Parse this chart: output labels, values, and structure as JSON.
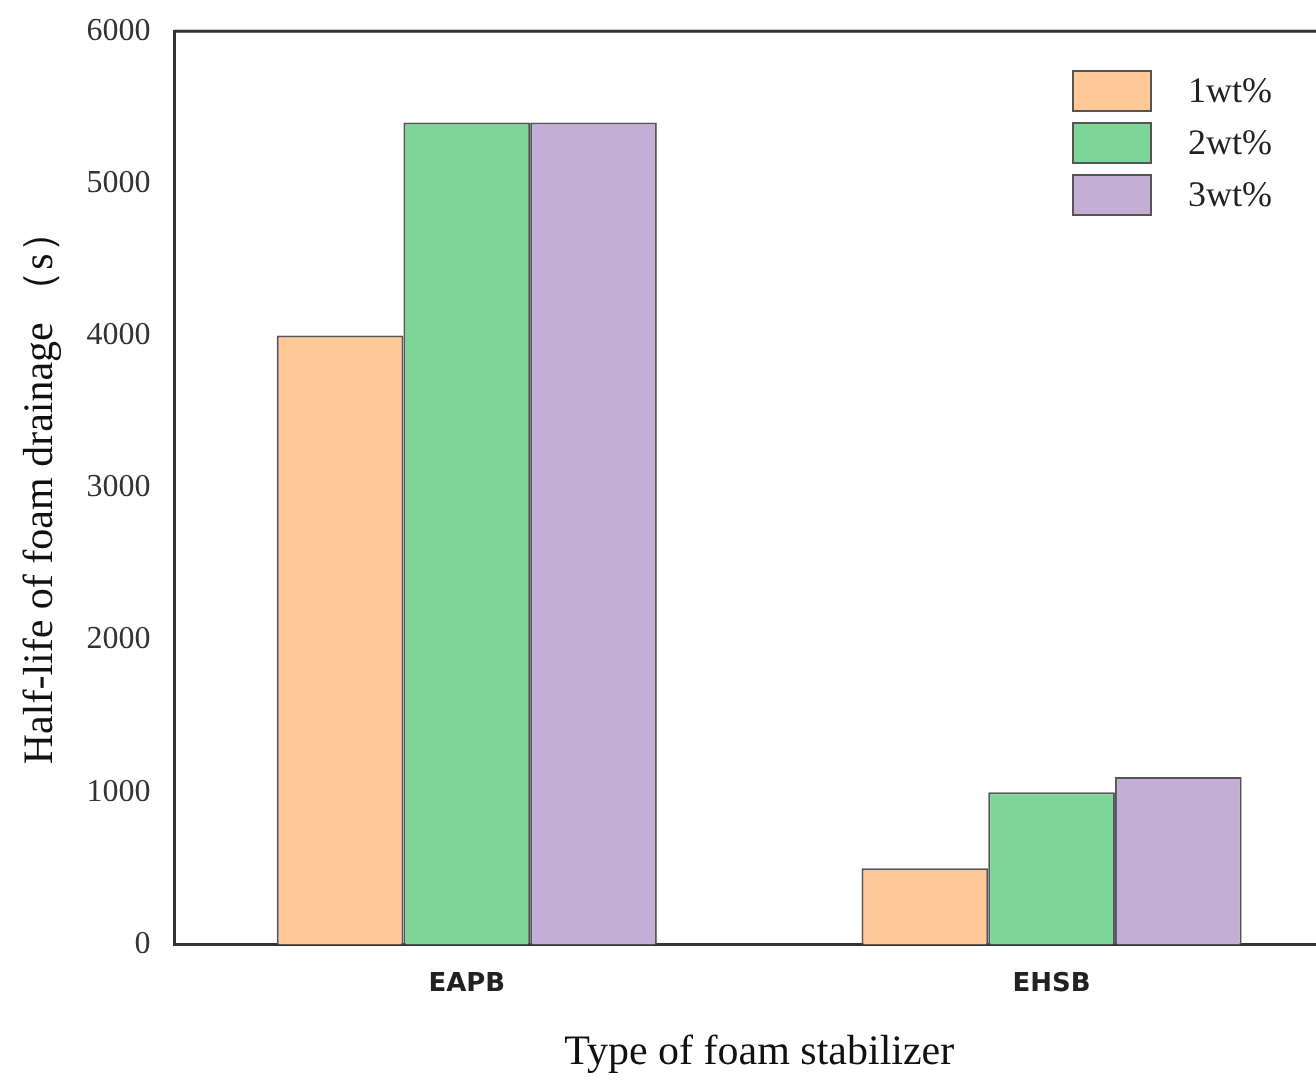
{
  "chart_data": {
    "type": "bar",
    "xlabel": "Type of foam stabilizer",
    "ylabel": "Half-life of foam drainage （s）",
    "categories": [
      "EAPB",
      "EHSB"
    ],
    "series": [
      {
        "name": "1wt%",
        "color": "#ffc896",
        "values": [
          4000,
          500
        ]
      },
      {
        "name": "2wt%",
        "color": "#7dd698",
        "values": [
          5400,
          1000
        ]
      },
      {
        "name": "3wt%",
        "color": "#c3aed6",
        "values": [
          5400,
          1100
        ]
      }
    ],
    "ylim": [
      0,
      6000
    ],
    "yticks": [
      0,
      1000,
      2000,
      3000,
      4000,
      5000,
      6000
    ],
    "grid": false,
    "legend": "top right"
  }
}
